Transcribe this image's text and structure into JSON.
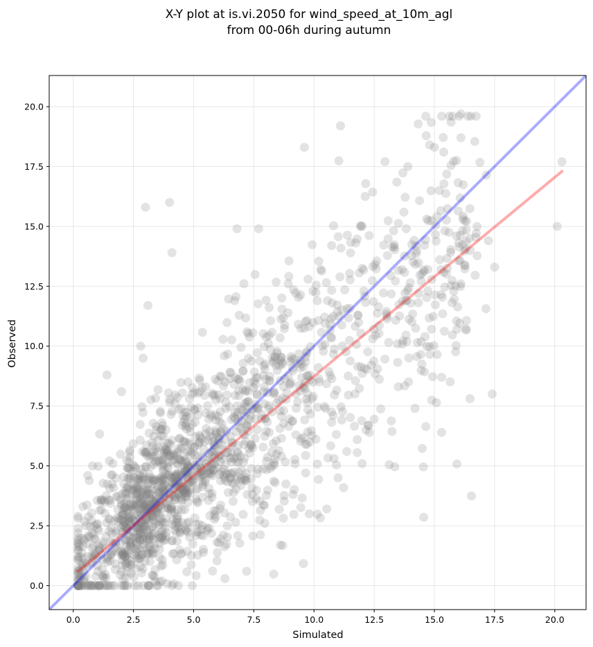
{
  "chart_data": {
    "type": "scatter",
    "title": "X-Y plot at is.vi.2050 for wind_speed_at_10m_agl",
    "subtitle": "from 00-06h during autumn",
    "xlabel": "Simulated",
    "ylabel": "Observed",
    "xlim": [
      -1.0,
      21.3
    ],
    "ylim": [
      -1.0,
      21.3
    ],
    "xticks": [
      "0.0",
      "2.5",
      "5.0",
      "7.5",
      "10.0",
      "12.5",
      "15.0",
      "17.5",
      "20.0"
    ],
    "yticks": [
      "0.0",
      "2.5",
      "5.0",
      "7.5",
      "10.0",
      "12.5",
      "15.0",
      "17.5",
      "20.0"
    ],
    "grid": true,
    "point_color": "#808080",
    "point_count": 1800,
    "point_sample": [
      [
        0.2,
        2.9
      ],
      [
        0.4,
        3.3
      ],
      [
        0.6,
        4.6
      ],
      [
        0.8,
        5.0
      ],
      [
        1.4,
        8.8
      ],
      [
        2.0,
        8.1
      ],
      [
        3.0,
        15.8
      ],
      [
        4.0,
        16.0
      ],
      [
        4.1,
        13.9
      ],
      [
        3.1,
        11.7
      ],
      [
        6.8,
        14.9
      ],
      [
        7.7,
        14.9
      ],
      [
        9.6,
        18.3
      ],
      [
        11.1,
        19.2
      ],
      [
        16.1,
        19.7
      ],
      [
        16.1,
        18.7
      ],
      [
        14.8,
        18.4
      ],
      [
        15.0,
        18.3
      ],
      [
        20.1,
        15.0
      ],
      [
        20.3,
        17.7
      ],
      [
        17.4,
        8.0
      ],
      [
        15.3,
        6.4
      ],
      [
        15.3,
        8.7
      ],
      [
        17.5,
        13.3
      ],
      [
        12.3,
        6.4
      ],
      [
        11.0,
        4.5
      ],
      [
        12.0,
        5.1
      ],
      [
        8.6,
        1.7
      ],
      [
        9.8,
        3.0
      ],
      [
        1.4,
        0.0
      ],
      [
        6.3,
        0.3
      ],
      [
        7.2,
        0.6
      ],
      [
        2.8,
        10.0
      ],
      [
        2.9,
        9.5
      ],
      [
        6.7,
        11.9
      ],
      [
        12.0,
        15.0
      ],
      [
        13.9,
        17.5
      ],
      [
        15.2,
        16.5
      ],
      [
        16.1,
        12.6
      ],
      [
        15.8,
        12.3
      ]
    ],
    "series": [
      {
        "type": "identity",
        "color": "#0000ff",
        "x": [
          -1.0,
          21.3
        ],
        "y": [
          -1.0,
          21.3
        ]
      },
      {
        "type": "regression",
        "color": "#ff0000",
        "x": [
          0.2,
          20.3
        ],
        "y": [
          0.6,
          17.3
        ]
      }
    ]
  }
}
